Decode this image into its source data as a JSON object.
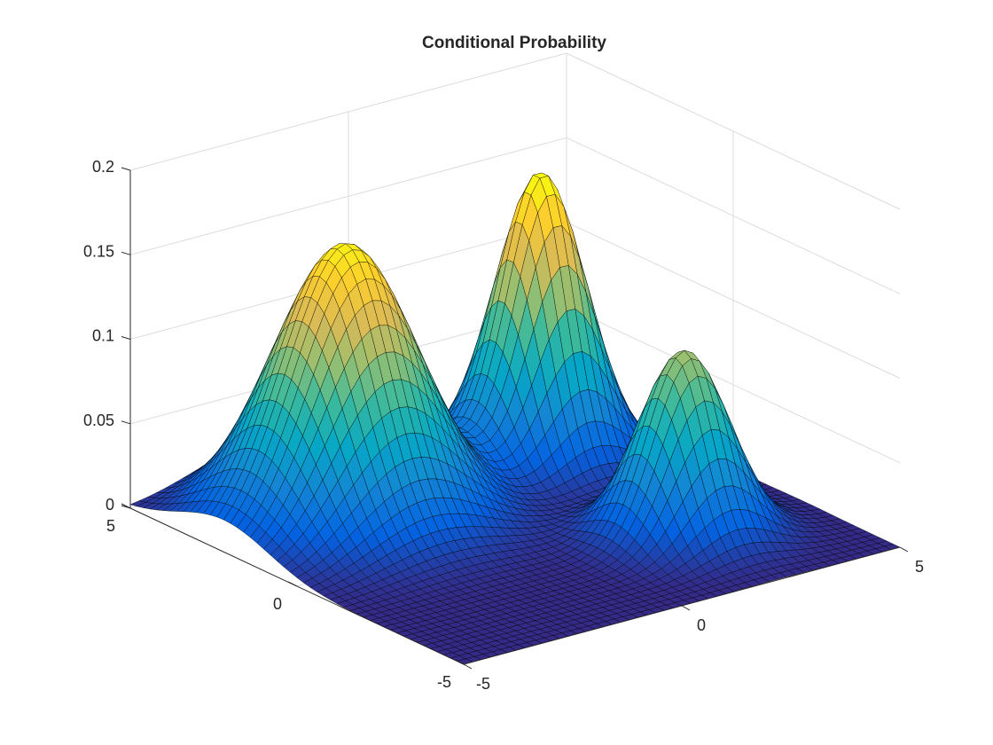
{
  "figure_title": "Conditional Probability",
  "chart_data": {
    "type": "surface",
    "title": "Conditional Probability",
    "xlabel": "",
    "ylabel": "",
    "zlabel": "",
    "colormap": "parula",
    "colormap_stops": [
      "#352a87",
      "#0363e1",
      "#1485d4",
      "#06a7c6",
      "#38b99e",
      "#92bf73",
      "#d9ba56",
      "#fcce2e",
      "#f9fb0e"
    ],
    "edge_color": "#000000",
    "grid": true,
    "view": "3d-perspective",
    "xlim": [
      -5,
      5
    ],
    "ylim": [
      -5,
      5
    ],
    "zlim": [
      0,
      0.2
    ],
    "x_ticks": [
      -5,
      0,
      5
    ],
    "x_tick_labels": [
      "-5",
      "0",
      "5"
    ],
    "y_ticks": [
      -5,
      0,
      5
    ],
    "y_tick_labels": [
      "-5",
      "0",
      "5"
    ],
    "z_ticks": [
      0,
      0.05,
      0.1,
      0.15,
      0.2
    ],
    "z_tick_labels": [
      "0",
      "0.05",
      "0.1",
      "0.15",
      "0.2"
    ],
    "grid_points": [
      -5,
      -4.8,
      -4.6,
      -4.4,
      -4.2,
      -4,
      -3.8,
      -3.6,
      -3.4,
      -3.2,
      -3,
      -2.8,
      -2.6,
      -2.4,
      -2.2,
      -2,
      -1.8,
      -1.6,
      -1.4,
      -1.2,
      -1,
      -0.8,
      -0.6,
      -0.4,
      -0.2,
      0,
      0.2,
      0.4,
      0.6,
      0.8,
      1,
      1.2,
      1.4,
      1.6,
      1.8,
      2,
      2.2,
      2.4,
      2.6,
      2.8,
      3,
      3.2,
      3.4,
      3.6,
      3.8,
      4,
      4.2,
      4.4,
      4.6,
      4.8,
      5
    ],
    "components": [
      {
        "x": -2.2,
        "y": 2.2,
        "sigma_x": 1.35,
        "sigma_y": 1.35,
        "peak": 0.163
      },
      {
        "x": 2.5,
        "y": 2.5,
        "sigma_x": 0.85,
        "sigma_y": 0.85,
        "peak": 0.17
      },
      {
        "x": 2.2,
        "y": -2.2,
        "sigma_x": 0.85,
        "sigma_y": 0.85,
        "peak": 0.11
      }
    ]
  }
}
